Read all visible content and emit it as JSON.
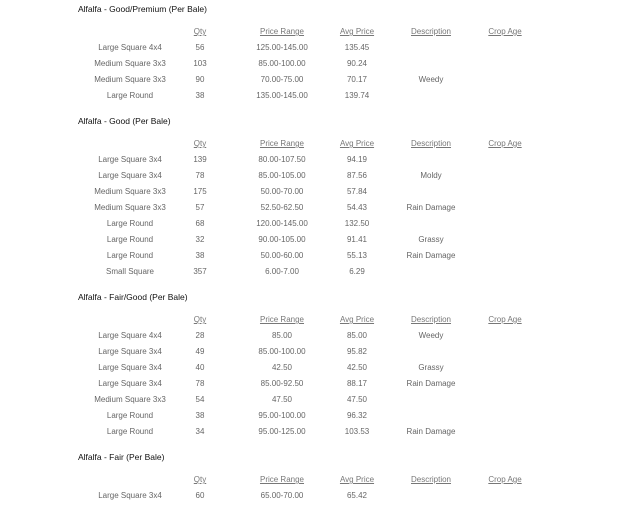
{
  "headers": {
    "qty": "Qty",
    "price_range": "Price Range",
    "avg_price": "Avg Price",
    "description": "Description",
    "crop_age": "Crop Age"
  },
  "sections": [
    {
      "title": "Alfalfa - Good/Premium (Per Bale)",
      "rows": [
        [
          "Large Square 4x4",
          "56",
          "125.00-145.00",
          "135.45",
          "",
          ""
        ],
        [
          "Medium Square 3x3",
          "103",
          "85.00-100.00",
          "90.24",
          "",
          ""
        ],
        [
          "Medium Square 3x3",
          "90",
          "70.00-75.00",
          "70.17",
          "Weedy",
          ""
        ],
        [
          "Large Round",
          "38",
          "135.00-145.00",
          "139.74",
          "",
          ""
        ]
      ]
    },
    {
      "title": "Alfalfa - Good (Per Bale)",
      "rows": [
        [
          "Large Square 3x4",
          "139",
          "80.00-107.50",
          "94.19",
          "",
          ""
        ],
        [
          "Large Square 3x4",
          "78",
          "85.00-105.00",
          "87.56",
          "Moldy",
          ""
        ],
        [
          "Medium Square 3x3",
          "175",
          "50.00-70.00",
          "57.84",
          "",
          ""
        ],
        [
          "Medium Square 3x3",
          "57",
          "52.50-62.50",
          "54.43",
          "Rain Damage",
          ""
        ],
        [
          "Large Round",
          "68",
          "120.00-145.00",
          "132.50",
          "",
          ""
        ],
        [
          "Large Round",
          "32",
          "90.00-105.00",
          "91.41",
          "Grassy",
          ""
        ],
        [
          "Large Round",
          "38",
          "50.00-60.00",
          "55.13",
          "Rain Damage",
          ""
        ],
        [
          "Small Square",
          "357",
          "6.00-7.00",
          "6.29",
          "",
          ""
        ]
      ]
    },
    {
      "title": "Alfalfa - Fair/Good (Per Bale)",
      "rows": [
        [
          "Large Square 4x4",
          "28",
          "85.00",
          "85.00",
          "Weedy",
          ""
        ],
        [
          "Large Square 3x4",
          "49",
          "85.00-100.00",
          "95.82",
          "",
          ""
        ],
        [
          "Large Square 3x4",
          "40",
          "42.50",
          "42.50",
          "Grassy",
          ""
        ],
        [
          "Large Square 3x4",
          "78",
          "85.00-92.50",
          "88.17",
          "Rain Damage",
          ""
        ],
        [
          "Medium Square 3x3",
          "54",
          "47.50",
          "47.50",
          "",
          ""
        ],
        [
          "Large Round",
          "38",
          "95.00-100.00",
          "96.32",
          "",
          ""
        ],
        [
          "Large Round",
          "34",
          "95.00-125.00",
          "103.53",
          "Rain Damage",
          ""
        ]
      ]
    },
    {
      "title": "Alfalfa - Fair (Per Bale)",
      "rows": [
        [
          "Large Square 3x4",
          "60",
          "65.00-70.00",
          "65.42",
          "",
          ""
        ]
      ]
    }
  ]
}
